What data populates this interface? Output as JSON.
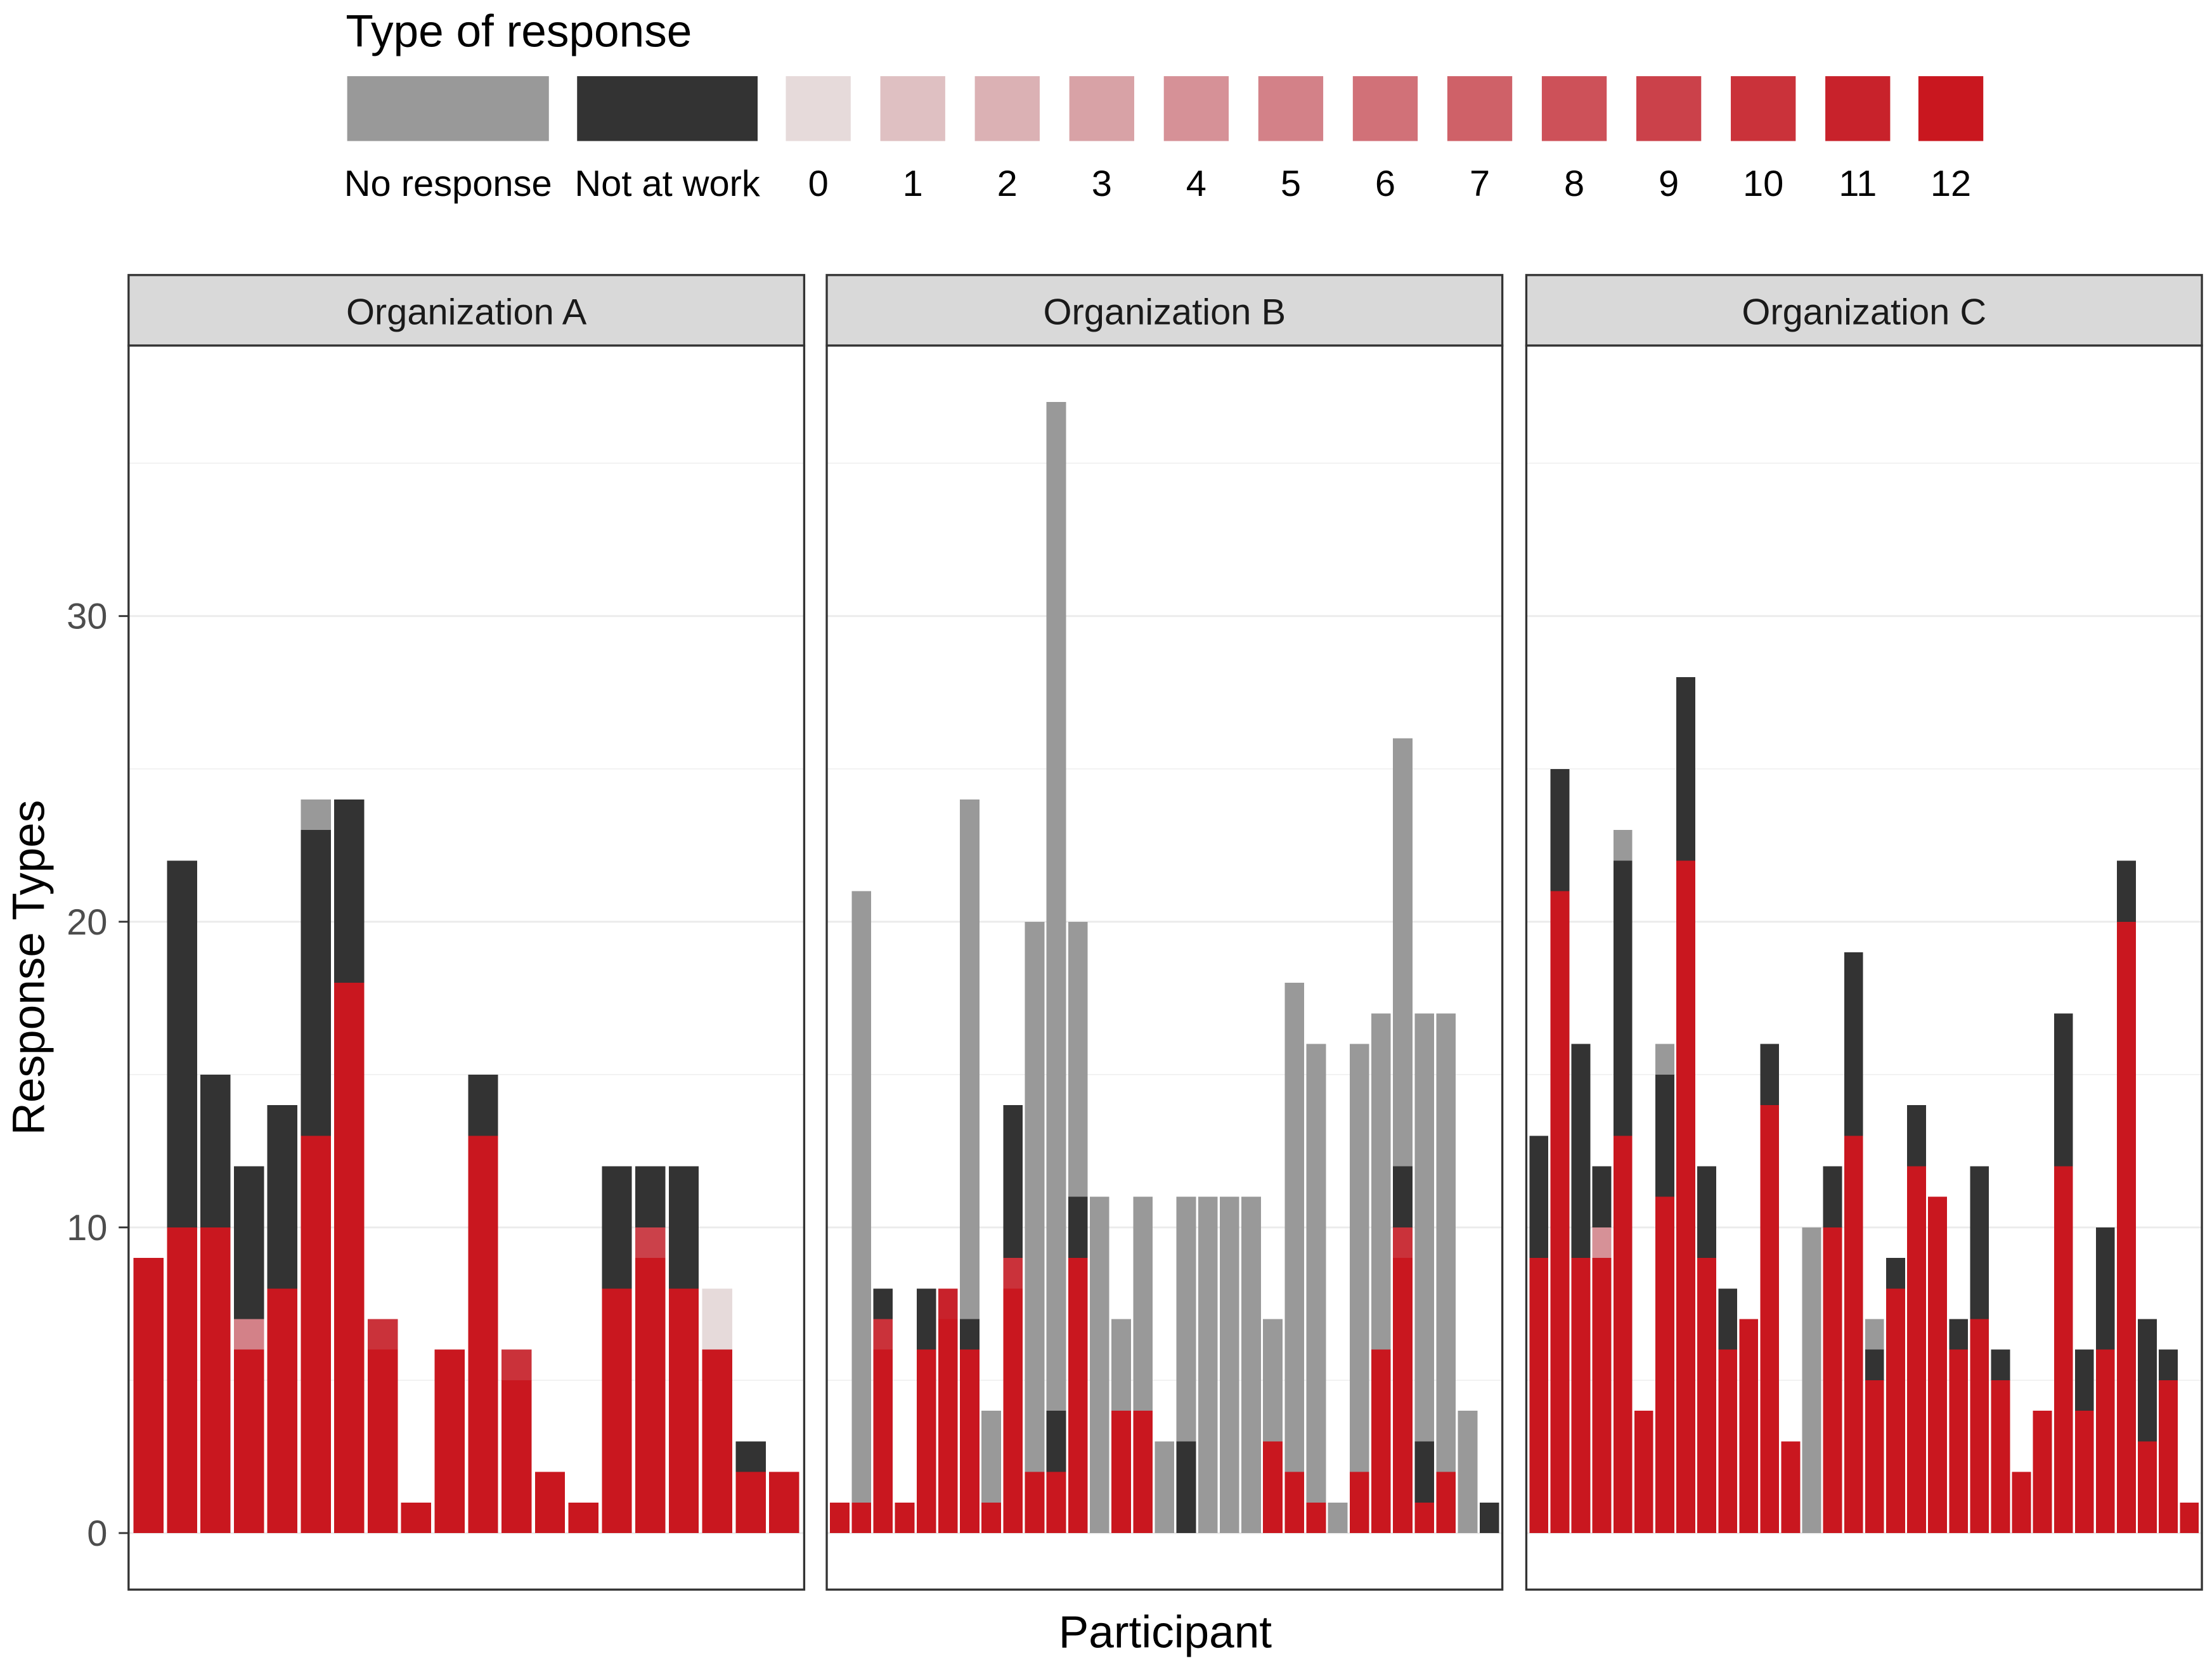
{
  "chart_data": {
    "type": "bar",
    "stacked": true,
    "xlabel": "Participant",
    "ylabel": "Response Types",
    "ylim": [
      -1.85,
      38.85
    ],
    "yticks": [
      0,
      10,
      20,
      30
    ],
    "grid": true,
    "legend": {
      "title": "Type of response",
      "position": "top",
      "items": [
        {
          "label": "No response",
          "color": "#999999"
        },
        {
          "label": "Not at work",
          "color": "#333333"
        },
        {
          "label": "0",
          "color": "#e6dada"
        },
        {
          "label": "1",
          "color": "#dfc0c2"
        },
        {
          "label": "2",
          "color": "#dbb1b4"
        },
        {
          "label": "3",
          "color": "#d8a2a6"
        },
        {
          "label": "4",
          "color": "#d69197"
        },
        {
          "label": "5",
          "color": "#d38188"
        },
        {
          "label": "6",
          "color": "#d17178"
        },
        {
          "label": "7",
          "color": "#cf6168"
        },
        {
          "label": "8",
          "color": "#cd5159"
        },
        {
          "label": "9",
          "color": "#cb414a"
        },
        {
          "label": "10",
          "color": "#ca323a"
        },
        {
          "label": "11",
          "color": "#c8222b"
        },
        {
          "label": "12",
          "color": "#c9171f"
        }
      ]
    },
    "facets": [
      {
        "name": "Organization A",
        "bars": [
          {
            "12": 9
          },
          {
            "12": 10,
            "Not at work": 12
          },
          {
            "12": 10,
            "Not at work": 5
          },
          {
            "12": 6,
            "5": 1,
            "Not at work": 5
          },
          {
            "12": 8,
            "Not at work": 6
          },
          {
            "12": 13,
            "Not at work": 10,
            "No response": 1
          },
          {
            "12": 18,
            "Not at work": 6
          },
          {
            "12": 6,
            "10": 1
          },
          {
            "12": 1
          },
          {
            "12": 6
          },
          {
            "12": 13,
            "Not at work": 2
          },
          {
            "12": 5,
            "10": 1
          },
          {
            "12": 2
          },
          {
            "12": 1
          },
          {
            "12": 8,
            "Not at work": 4
          },
          {
            "12": 9,
            "9": 1,
            "Not at work": 2
          },
          {
            "12": 8,
            "Not at work": 4
          },
          {
            "12": 6,
            "0": 2
          },
          {
            "12": 2,
            "Not at work": 1
          },
          {
            "12": 2
          }
        ]
      },
      {
        "name": "Organization B",
        "bars": [
          {
            "12": 1
          },
          {
            "12": 1,
            "No response": 20
          },
          {
            "12": 6,
            "10": 1,
            "Not at work": 1
          },
          {
            "12": 1
          },
          {
            "12": 6,
            "Not at work": 2
          },
          {
            "12": 7,
            "11": 1
          },
          {
            "12": 6,
            "Not at work": 1,
            "No response": 17
          },
          {
            "12": 1,
            "No response": 3
          },
          {
            "12": 8,
            "10": 1,
            "Not at work": 5
          },
          {
            "12": 2,
            "No response": 18
          },
          {
            "12": 2,
            "Not at work": 2,
            "No response": 33
          },
          {
            "12": 9,
            "Not at work": 2,
            "No response": 9
          },
          {
            "No response": 11
          },
          {
            "12": 4,
            "No response": 3
          },
          {
            "12": 4,
            "No response": 7
          },
          {
            "No response": 3
          },
          {
            "Not at work": 3,
            "No response": 8
          },
          {
            "No response": 11
          },
          {
            "No response": 11
          },
          {
            "No response": 11
          },
          {
            "12": 3,
            "No response": 4
          },
          {
            "12": 2,
            "No response": 16
          },
          {
            "12": 1,
            "No response": 15
          },
          {
            "No response": 1
          },
          {
            "12": 2,
            "No response": 14
          },
          {
            "12": 6,
            "No response": 11
          },
          {
            "12": 9,
            "10": 1,
            "Not at work": 2,
            "No response": 14
          },
          {
            "12": 1,
            "Not at work": 2,
            "No response": 14
          },
          {
            "12": 2,
            "No response": 15
          },
          {
            "No response": 4
          },
          {
            "Not at work": 1
          }
        ]
      },
      {
        "name": "Organization C",
        "bars": [
          {
            "12": 9,
            "Not at work": 4
          },
          {
            "12": 21,
            "Not at work": 4
          },
          {
            "12": 9,
            "Not at work": 7
          },
          {
            "12": 9,
            "4": 1,
            "Not at work": 2
          },
          {
            "12": 13,
            "Not at work": 9,
            "No response": 1
          },
          {
            "12": 4
          },
          {
            "12": 11,
            "Not at work": 4,
            "No response": 1
          },
          {
            "12": 22,
            "Not at work": 6
          },
          {
            "12": 9,
            "Not at work": 3
          },
          {
            "12": 6,
            "Not at work": 2
          },
          {
            "12": 7
          },
          {
            "12": 14,
            "Not at work": 2
          },
          {
            "12": 3
          },
          {
            "No response": 10
          },
          {
            "12": 10,
            "Not at work": 2
          },
          {
            "12": 13,
            "Not at work": 6
          },
          {
            "12": 5,
            "Not at work": 1,
            "No response": 1
          },
          {
            "12": 8,
            "Not at work": 1
          },
          {
            "12": 12,
            "Not at work": 2
          },
          {
            "12": 11
          },
          {
            "12": 6,
            "Not at work": 1
          },
          {
            "12": 7,
            "Not at work": 5
          },
          {
            "12": 5,
            "Not at work": 1
          },
          {
            "12": 2
          },
          {
            "12": 4
          },
          {
            "12": 12,
            "Not at work": 5
          },
          {
            "12": 4,
            "Not at work": 2
          },
          {
            "12": 6,
            "Not at work": 4
          },
          {
            "12": 20,
            "Not at work": 2
          },
          {
            "12": 3,
            "Not at work": 4
          },
          {
            "12": 5,
            "Not at work": 1
          },
          {
            "12": 1
          }
        ]
      }
    ]
  }
}
